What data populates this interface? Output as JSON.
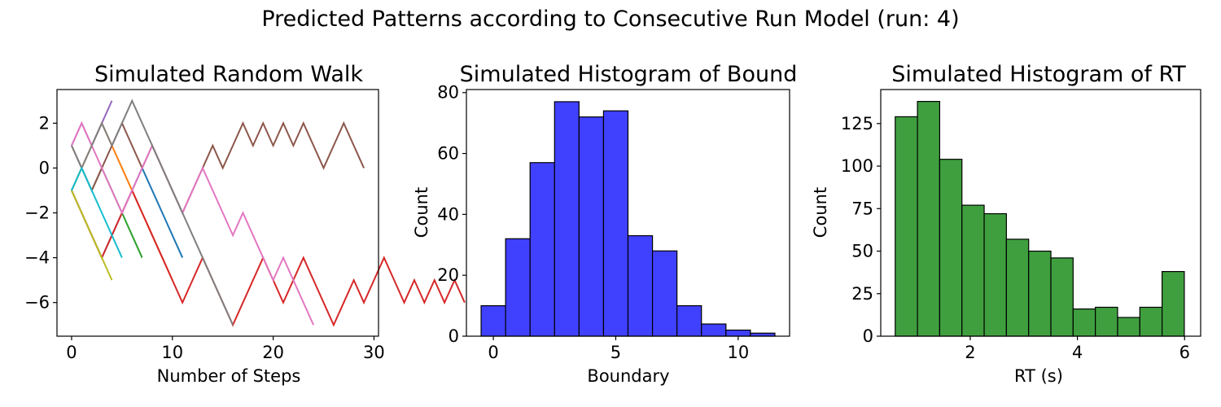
{
  "figure": {
    "title": "Predicted Patterns according to Consecutive Run Model (run: 4)"
  },
  "chart_data": [
    {
      "type": "line",
      "title": "Simulated Random Walk",
      "xlabel": "Number of Steps",
      "ylabel": "",
      "xlim": [
        -1.45,
        30.45
      ],
      "ylim": [
        -7.5,
        3.5
      ],
      "xticks": [
        0,
        10,
        20,
        30
      ],
      "yticks": [
        2,
        0,
        -2,
        -4,
        -6
      ],
      "grid": false,
      "series": [
        {
          "color": "#1f77b4",
          "y": [
            -1,
            -2,
            -3,
            -4,
            -3,
            -2,
            -1,
            0,
            -1,
            -2,
            -3,
            -4
          ]
        },
        {
          "color": "#ff7f0e",
          "y": [
            -1,
            0,
            1,
            2,
            1,
            0,
            -1,
            -2,
            -3,
            -4,
            -5
          ]
        },
        {
          "color": "#2ca02c",
          "y": [
            -1,
            0,
            -1,
            0,
            -1,
            -2,
            -3,
            -4
          ]
        },
        {
          "color": "#d62728",
          "y": [
            -1,
            -2,
            -3,
            -4,
            -3,
            -2,
            -1,
            -2,
            -3,
            -4,
            -5,
            -6,
            -5,
            -4,
            -5,
            -6,
            -7,
            -6,
            -5,
            -4,
            -5,
            -6,
            -5,
            -4,
            -5,
            -6,
            -7,
            -6,
            -5,
            -6,
            -5,
            -4,
            -5,
            -6,
            -5,
            -6,
            -5,
            -6,
            -5,
            -6
          ]
        },
        {
          "color": "#9467bd",
          "y": [
            1,
            2,
            1,
            2,
            3
          ]
        },
        {
          "color": "#8c564b",
          "y": [
            1,
            0,
            -1,
            0,
            1,
            2,
            1,
            0,
            1,
            0,
            -1,
            -2,
            -1,
            0,
            1,
            0,
            1,
            2,
            1,
            2,
            1,
            2,
            1,
            2,
            1,
            0,
            1,
            2,
            1,
            0
          ]
        },
        {
          "color": "#e377c2",
          "y": [
            1,
            2,
            1,
            0,
            -1,
            -2,
            -1,
            0,
            1,
            0,
            -1,
            -2,
            -1,
            0,
            -1,
            -2,
            -3,
            -2,
            -3,
            -4,
            -5,
            -4,
            -5,
            -6,
            -7
          ]
        },
        {
          "color": "#7f7f7f",
          "y": [
            1,
            0,
            1,
            2,
            1,
            2,
            3,
            2,
            1,
            0,
            -1,
            -2,
            -3,
            -4,
            -5,
            -6,
            -7
          ]
        },
        {
          "color": "#bcbd22",
          "y": [
            -1,
            -2,
            -3,
            -4,
            -5
          ]
        },
        {
          "color": "#17becf",
          "y": [
            -1,
            0,
            -1,
            -2,
            -3,
            -4
          ]
        }
      ]
    },
    {
      "type": "bar",
      "title": "Simulated Histogram of Bound",
      "xlabel": "Boundary",
      "ylabel": "Count",
      "xlim": [
        -1.1,
        12.1
      ],
      "ylim": [
        0,
        81
      ],
      "xticks": [
        0,
        5,
        10
      ],
      "yticks": [
        0,
        20,
        40,
        60,
        80
      ],
      "grid": false,
      "color": "#4040ff",
      "edgecolor": "#000000",
      "bin_width": 1,
      "bin_starts": [
        -0.5,
        0.5,
        1.5,
        2.5,
        3.5,
        4.5,
        5.5,
        6.5,
        7.5,
        8.5,
        9.5,
        10.5
      ],
      "values": [
        10,
        32,
        57,
        77,
        72,
        74,
        33,
        28,
        10,
        4,
        2,
        1
      ]
    },
    {
      "type": "bar",
      "title": "Simulated Histogram of RT",
      "xlabel": "RT (s)",
      "ylabel": "Count",
      "xlim": [
        0.33,
        6.3
      ],
      "ylim": [
        0,
        145
      ],
      "xticks": [
        2,
        4,
        6
      ],
      "yticks": [
        0,
        25,
        50,
        75,
        100,
        125
      ],
      "grid": false,
      "color": "#3f9f3f",
      "edgecolor": "#000000",
      "bin_width": 0.415,
      "bin_starts": [
        0.6,
        1.015,
        1.43,
        1.845,
        2.26,
        2.675,
        3.09,
        3.505,
        3.92,
        4.335,
        4.75,
        5.165,
        5.58
      ],
      "values": [
        129,
        138,
        104,
        77,
        72,
        57,
        50,
        46,
        16,
        17,
        11,
        17,
        38
      ]
    }
  ]
}
